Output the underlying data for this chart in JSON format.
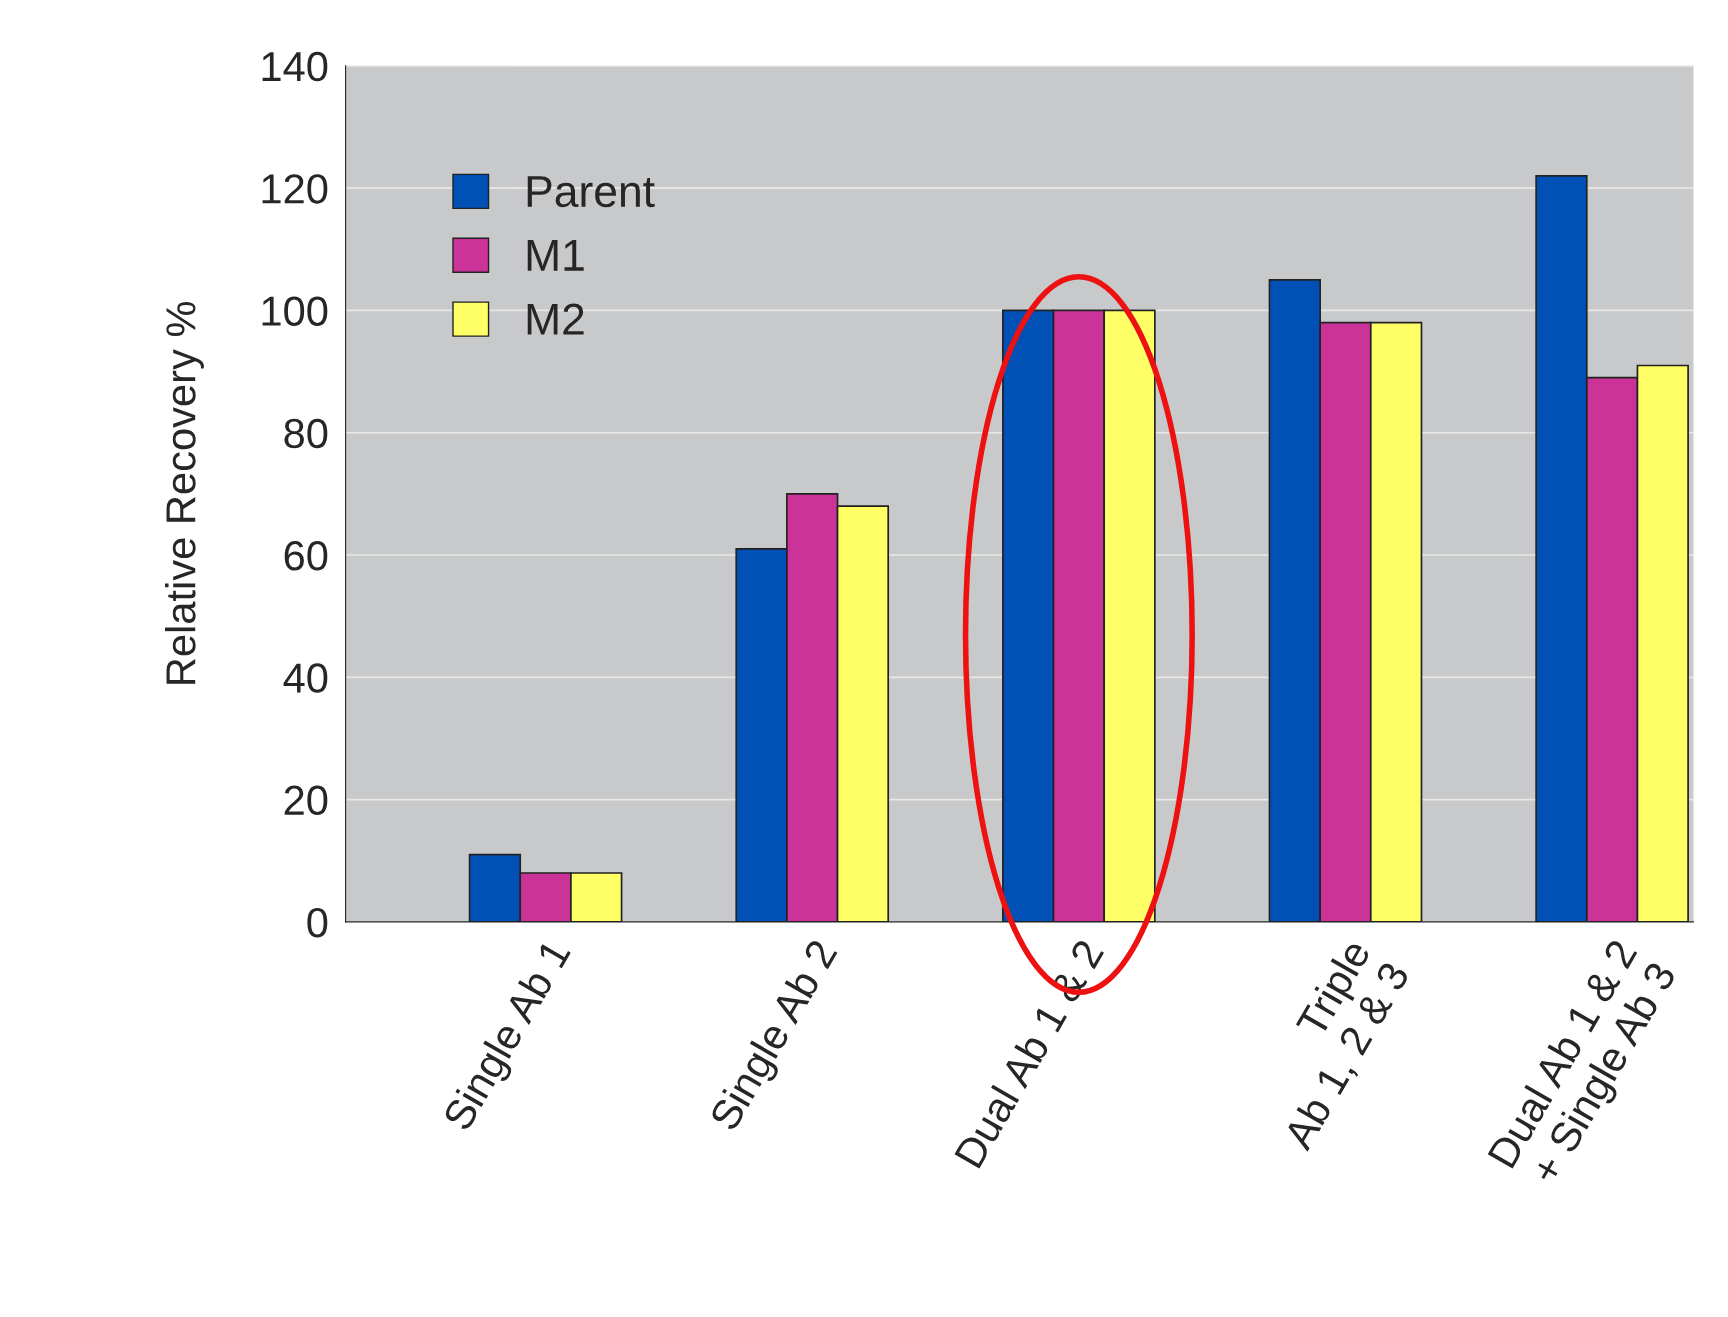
{
  "chart_data": {
    "type": "bar",
    "ylabel": "Relative Recovery %",
    "categories": [
      "Single Ab 1",
      "Single Ab 2",
      "Dual Ab 1 & 2",
      "Triple\nAb 1, 2 & 3",
      "Dual Ab 1 & 2\n+ Single Ab 3"
    ],
    "series": [
      {
        "name": "Parent",
        "color": "#0050b5",
        "values": [
          11,
          61,
          100,
          105,
          122
        ]
      },
      {
        "name": "M1",
        "color": "#cc3399",
        "values": [
          8,
          70,
          100,
          98,
          89
        ]
      },
      {
        "name": "M2",
        "color": "#ffff66",
        "values": [
          8,
          68,
          100,
          98,
          91
        ]
      }
    ],
    "ylim": [
      0,
      140
    ],
    "yticks": [
      0,
      20,
      40,
      60,
      80,
      100,
      120,
      140
    ],
    "grid": "y",
    "legend": "top left"
  }
}
